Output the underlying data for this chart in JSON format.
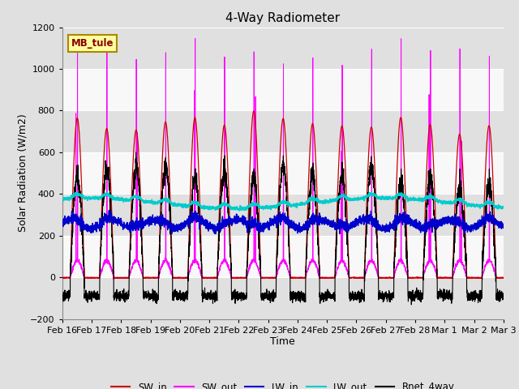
{
  "title": "4-Way Radiometer",
  "xlabel": "Time",
  "ylabel": "Solar Radiation (W/m2)",
  "ylim": [
    -200,
    1200
  ],
  "annotation": "MB_tule",
  "x_tick_labels": [
    "Feb 16",
    "Feb 17",
    "Feb 18",
    "Feb 19",
    "Feb 20",
    "Feb 21",
    "Feb 22",
    "Feb 23",
    "Feb 24",
    "Feb 25",
    "Feb 26",
    "Feb 27",
    "Feb 28",
    "Mar 1",
    "Mar 2",
    "Mar 3"
  ],
  "legend_entries": [
    "SW_in",
    "SW_out",
    "LW_in",
    "LW_out",
    "Rnet_4way"
  ],
  "legend_colors": [
    "#cc0000",
    "#ff00ff",
    "#0000cc",
    "#00cccc",
    "#000000"
  ],
  "num_days": 15,
  "pts_per_day": 288,
  "yticks": [
    -200,
    0,
    200,
    400,
    600,
    800,
    1000,
    1200
  ],
  "band_color": "#e8e8e8",
  "plot_bg": "#f8f8f8"
}
